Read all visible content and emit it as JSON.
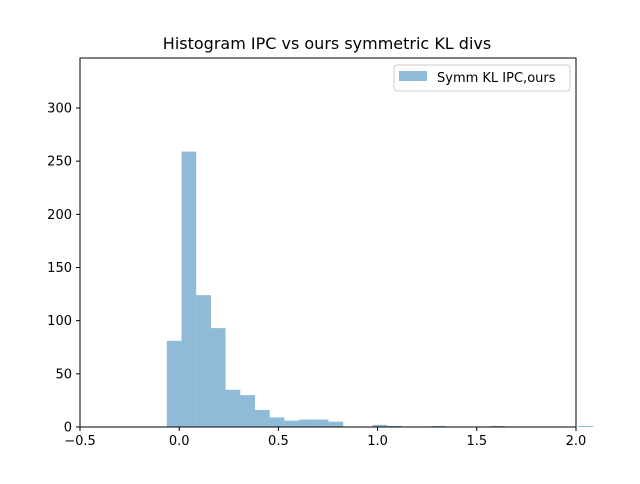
{
  "chart_data": {
    "type": "histogram",
    "title": "Histogram IPC vs ours symmetric KL divs",
    "xlabel": "",
    "ylabel": "",
    "xlim": [
      -0.5,
      2.0
    ],
    "ylim": [
      0,
      347
    ],
    "xticks": [
      -0.5,
      0.0,
      0.5,
      1.0,
      1.5,
      2.0
    ],
    "xtick_labels": [
      "−0.5",
      "0.0",
      "0.5",
      "1.0",
      "1.5",
      "2.0"
    ],
    "yticks": [
      0,
      50,
      100,
      150,
      200,
      250,
      300
    ],
    "ytick_labels": [
      "0",
      "50",
      "100",
      "150",
      "200",
      "250",
      "300"
    ],
    "grid": false,
    "legend": {
      "position": "upper-right",
      "entries": [
        "Symm KL IPC,ours"
      ]
    },
    "series": [
      {
        "name": "Symm KL IPC,ours",
        "color": "#1f77b4",
        "alpha": 0.5,
        "bin_start": -0.0625,
        "bin_width": 0.0741,
        "counts": [
          81,
          259,
          124,
          93,
          35,
          30,
          16,
          9,
          6,
          7,
          7,
          5,
          0,
          0,
          2,
          1,
          0,
          0,
          1,
          0,
          0,
          0,
          1,
          0,
          0,
          0,
          0,
          0,
          1,
          0,
          0,
          0,
          0,
          0,
          1
        ]
      }
    ]
  }
}
